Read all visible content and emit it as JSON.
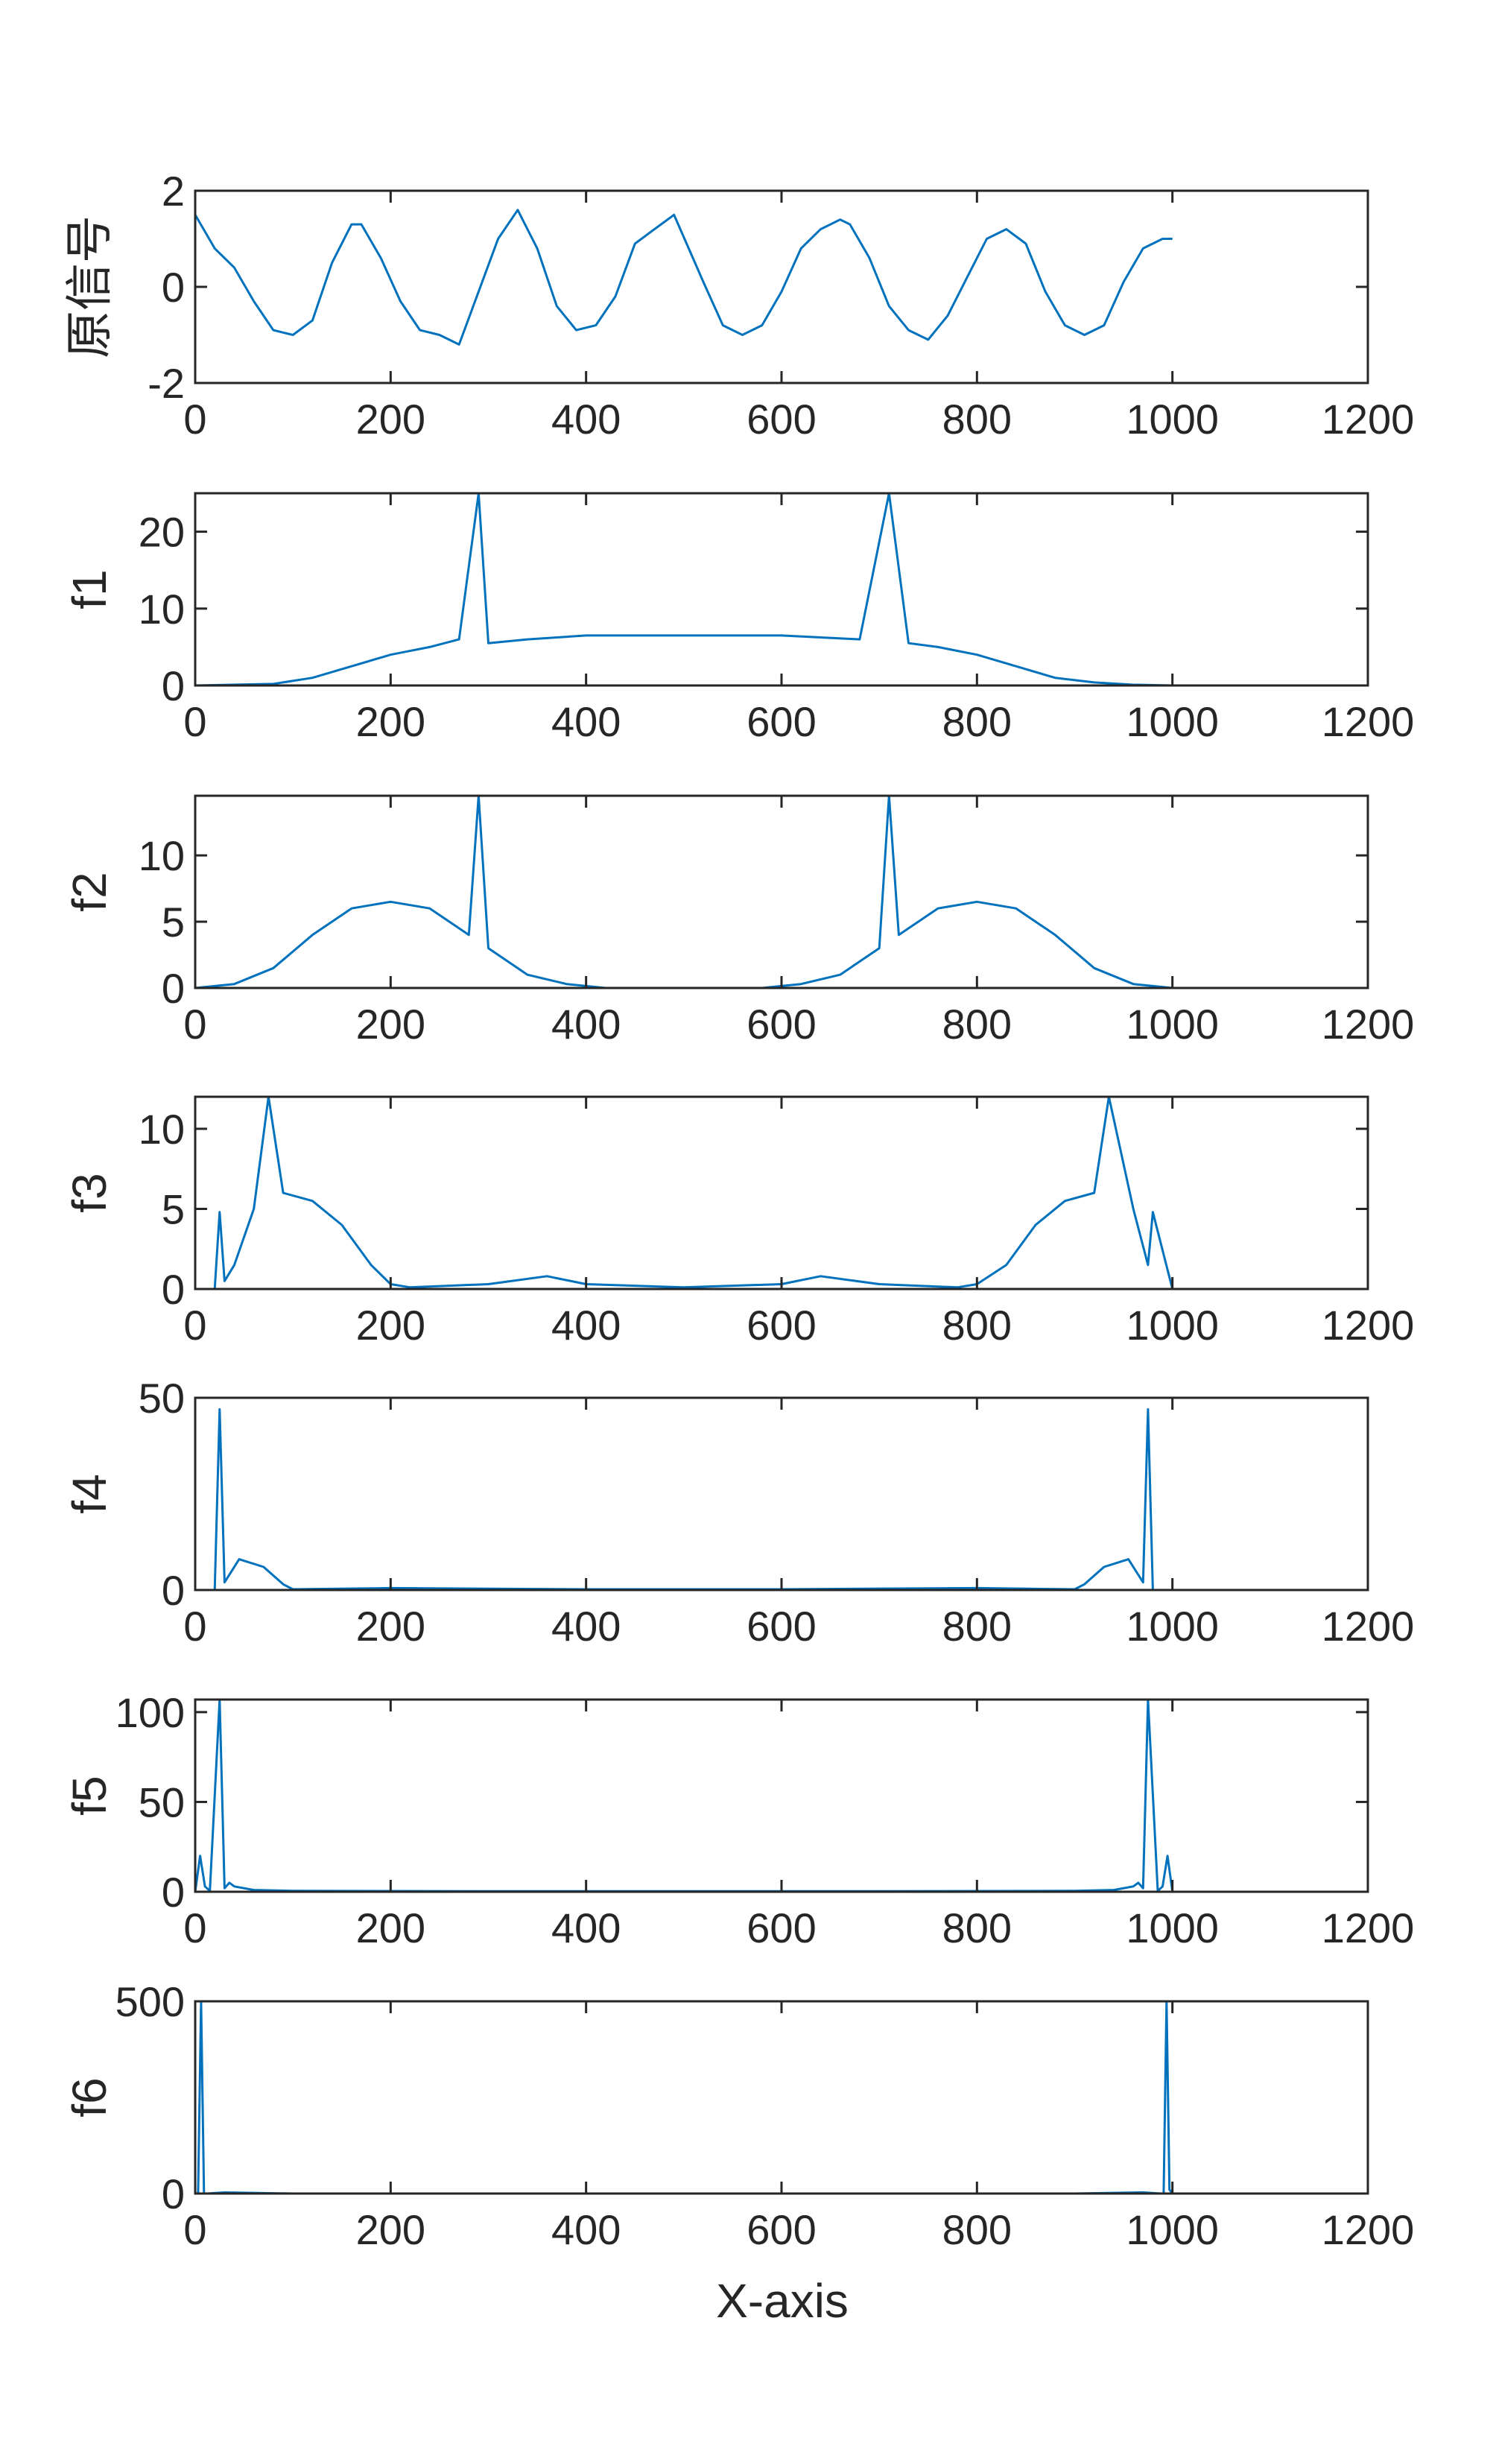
{
  "chart_data": [
    {
      "type": "line",
      "ylabel": "原信号",
      "xlim": [
        0,
        1200
      ],
      "ylim": [
        -2,
        2
      ],
      "xticks": [
        0,
        200,
        400,
        600,
        800,
        1000,
        1200
      ],
      "yticks": [
        -2,
        0,
        2
      ],
      "color": "#0072BD",
      "series": [
        {
          "x": [
            0,
            20,
            40,
            60,
            80,
            100,
            120,
            140,
            160,
            170,
            190,
            210,
            230,
            250,
            270,
            290,
            310,
            330,
            350,
            370,
            390,
            410,
            430,
            450,
            470,
            490,
            505,
            520,
            540,
            560,
            580,
            600,
            620,
            640,
            660,
            670,
            690,
            710,
            730,
            750,
            770,
            790,
            810,
            830,
            850,
            870,
            890,
            910,
            930,
            950,
            970,
            990,
            1000
          ],
          "y": [
            1.5,
            0.8,
            0.4,
            -0.3,
            -0.9,
            -1.0,
            -0.7,
            0.5,
            1.3,
            1.3,
            0.6,
            -0.3,
            -0.9,
            -1.0,
            -1.2,
            -0.1,
            1.0,
            1.6,
            0.8,
            -0.4,
            -0.9,
            -0.8,
            -0.2,
            0.9,
            1.2,
            1.5,
            0.8,
            0.1,
            -0.8,
            -1.0,
            -0.8,
            -0.1,
            0.8,
            1.2,
            1.4,
            1.3,
            0.6,
            -0.4,
            -0.9,
            -1.1,
            -0.6,
            0.2,
            1.0,
            1.2,
            0.9,
            -0.1,
            -0.8,
            -1.0,
            -0.8,
            0.1,
            0.8,
            1.0,
            1.0
          ]
        }
      ]
    },
    {
      "type": "line",
      "ylabel": "f1",
      "xlim": [
        0,
        1200
      ],
      "ylim": [
        0,
        25
      ],
      "xticks": [
        0,
        200,
        400,
        600,
        800,
        1000,
        1200
      ],
      "yticks": [
        0,
        10,
        20
      ],
      "color": "#0072BD",
      "series": [
        {
          "x": [
            0,
            80,
            120,
            160,
            200,
            240,
            270,
            290,
            300,
            340,
            400,
            500,
            600,
            680,
            710,
            730,
            760,
            800,
            840,
            880,
            920,
            960,
            1000
          ],
          "y": [
            0,
            0.2,
            1.0,
            2.5,
            4.0,
            5.0,
            6.0,
            25.0,
            5.5,
            6.0,
            6.5,
            6.5,
            6.5,
            6.0,
            25.0,
            5.5,
            5.0,
            4.0,
            2.5,
            1.0,
            0.4,
            0.1,
            0
          ]
        }
      ]
    },
    {
      "type": "line",
      "ylabel": "f2",
      "xlim": [
        0,
        1200
      ],
      "ylim": [
        0,
        14.5
      ],
      "xticks": [
        0,
        200,
        400,
        600,
        800,
        1000,
        1200
      ],
      "yticks": [
        0,
        5,
        10
      ],
      "color": "#0072BD",
      "series": [
        {
          "x": [
            0,
            40,
            80,
            120,
            160,
            200,
            240,
            280,
            290,
            300,
            340,
            380,
            420,
            500,
            580,
            620,
            660,
            700,
            710,
            720,
            760,
            800,
            840,
            880,
            920,
            960,
            1000
          ],
          "y": [
            0,
            0.3,
            1.5,
            4.0,
            6.0,
            6.5,
            6.0,
            4.0,
            14.5,
            3.0,
            1.0,
            0.3,
            0,
            0,
            0,
            0.3,
            1.0,
            3.0,
            14.5,
            4.0,
            6.0,
            6.5,
            6.0,
            4.0,
            1.5,
            0.3,
            0
          ]
        }
      ]
    },
    {
      "type": "line",
      "ylabel": "f3",
      "xlim": [
        0,
        1200
      ],
      "ylim": [
        0,
        12
      ],
      "xticks": [
        0,
        200,
        400,
        600,
        800,
        1000,
        1200
      ],
      "yticks": [
        0,
        5,
        10
      ],
      "color": "#0072BD",
      "series": [
        {
          "x": [
            0,
            20,
            25,
            30,
            40,
            60,
            75,
            90,
            120,
            150,
            180,
            200,
            220,
            300,
            360,
            400,
            500,
            600,
            640,
            700,
            780,
            800,
            830,
            860,
            890,
            920,
            935,
            960,
            975,
            980,
            1000
          ],
          "y": [
            0,
            0,
            4.8,
            0.5,
            1.5,
            5.0,
            12.0,
            6.0,
            5.5,
            4.0,
            1.5,
            0.3,
            0.1,
            0.3,
            0.8,
            0.3,
            0.1,
            0.3,
            0.8,
            0.3,
            0.1,
            0.3,
            1.5,
            4.0,
            5.5,
            6.0,
            12.0,
            5.0,
            1.5,
            4.8,
            0
          ]
        }
      ]
    },
    {
      "type": "line",
      "ylabel": "f4",
      "xlim": [
        0,
        1200
      ],
      "ylim": [
        0,
        50
      ],
      "xticks": [
        0,
        200,
        400,
        600,
        800,
        1000,
        1200
      ],
      "yticks": [
        0,
        50
      ],
      "color": "#0072BD",
      "series": [
        {
          "x": [
            0,
            20,
            25,
            30,
            45,
            70,
            90,
            100,
            200,
            400,
            600,
            800,
            900,
            910,
            930,
            955,
            970,
            975,
            980,
            1000
          ],
          "y": [
            0,
            0,
            47.0,
            2.0,
            8.0,
            6.0,
            1.5,
            0.2,
            0.5,
            0.2,
            0.2,
            0.5,
            0.2,
            1.5,
            6.0,
            8.0,
            2.0,
            47.0,
            0,
            0
          ]
        }
      ]
    },
    {
      "type": "line",
      "ylabel": "f5",
      "xlim": [
        0,
        1200
      ],
      "ylim": [
        0,
        107
      ],
      "xticks": [
        0,
        200,
        400,
        600,
        800,
        1000,
        1200
      ],
      "yticks": [
        0,
        50,
        100
      ],
      "color": "#0072BD",
      "series": [
        {
          "x": [
            0,
            5,
            10,
            15,
            25,
            30,
            35,
            40,
            60,
            100,
            300,
            500,
            700,
            900,
            940,
            960,
            965,
            970,
            975,
            985,
            990,
            995,
            1000
          ],
          "y": [
            0,
            20.0,
            3.0,
            0.5,
            107.0,
            2.0,
            5.0,
            3.0,
            1.0,
            0.5,
            0.3,
            0.3,
            0.3,
            0.5,
            1.0,
            3.0,
            5.0,
            2.0,
            107.0,
            0.5,
            3.0,
            20.0,
            0
          ]
        }
      ]
    },
    {
      "type": "line",
      "ylabel": "f6",
      "xlim": [
        0,
        1200
      ],
      "ylim": [
        0,
        500
      ],
      "xticks": [
        0,
        200,
        400,
        600,
        800,
        1000,
        1200
      ],
      "yticks": [
        0,
        500
      ],
      "color": "#0072BD",
      "xlabel": "X-axis",
      "series": [
        {
          "x": [
            0,
            3,
            6,
            9,
            12,
            30,
            100,
            500,
            900,
            970,
            988,
            991,
            994,
            997,
            1000
          ],
          "y": [
            0,
            0,
            500,
            0,
            0,
            3,
            0,
            0,
            0,
            3,
            0,
            0,
            500,
            10,
            0
          ]
        }
      ]
    }
  ]
}
